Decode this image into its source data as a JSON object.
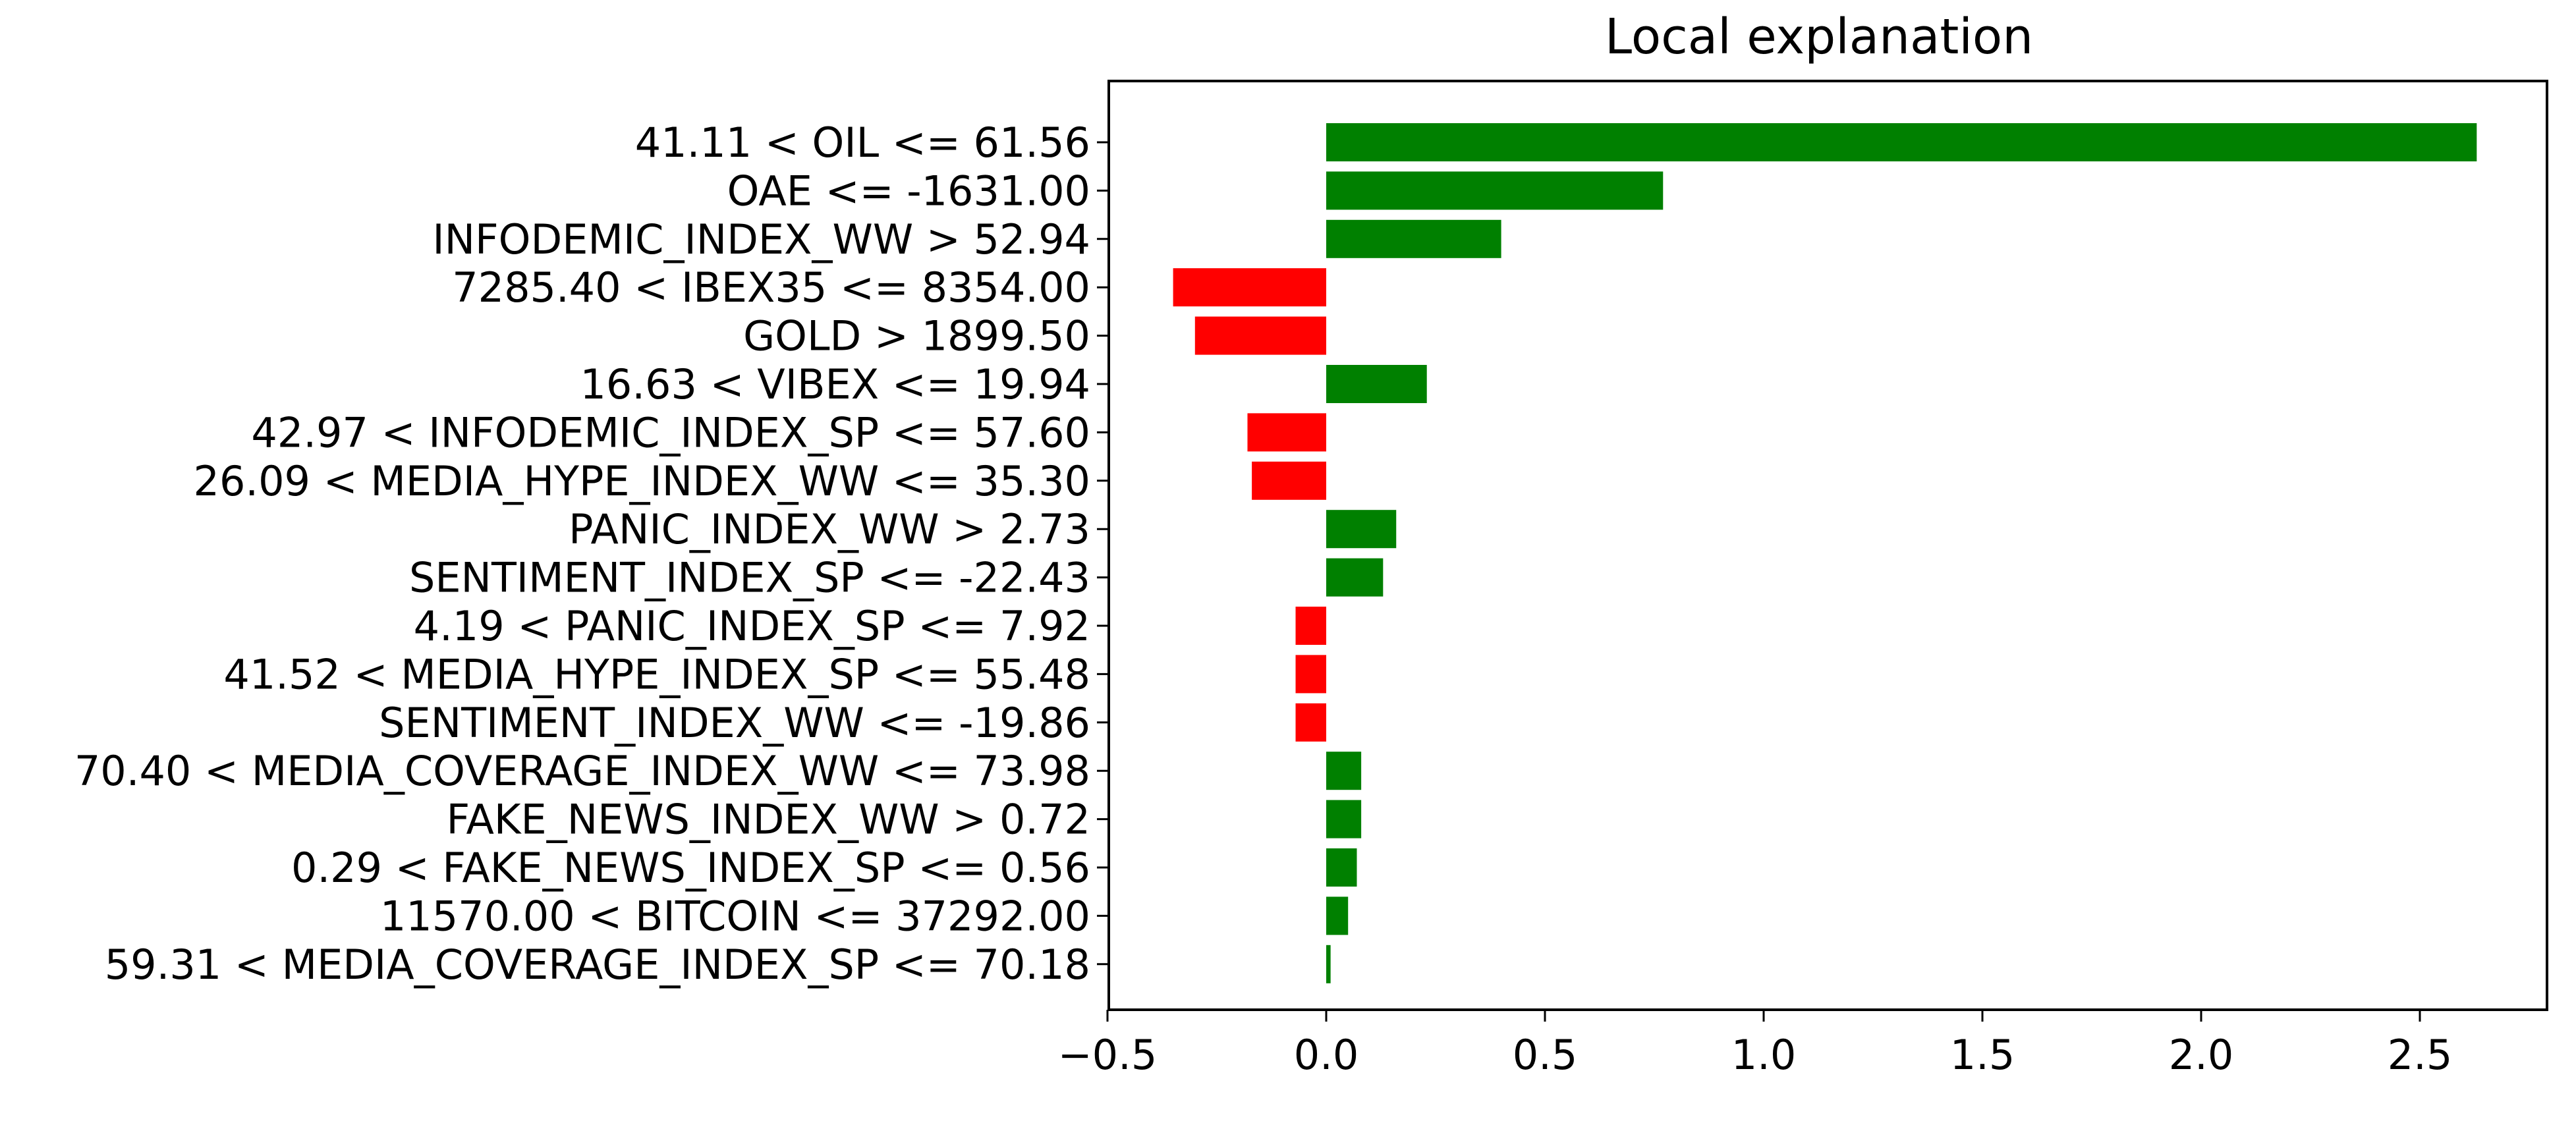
{
  "chart_data": {
    "type": "bar",
    "orientation": "horizontal",
    "title": "Local explanation",
    "xlabel": "",
    "ylabel": "",
    "xlim": [
      -0.5,
      2.8
    ],
    "xticks": [
      -0.5,
      0.0,
      0.5,
      1.0,
      1.5,
      2.0,
      2.5
    ],
    "xtick_labels": [
      "−0.5",
      "0.0",
      "0.5",
      "1.0",
      "1.5",
      "2.0",
      "2.5"
    ],
    "grid": false,
    "colors": {
      "positive": "#008000",
      "negative": "#ff0000"
    },
    "categories": [
      "41.11 < OIL <= 61.56",
      "OAE <= -1631.00",
      "INFODEMIC_INDEX_WW > 52.94",
      "7285.40 < IBEX35 <= 8354.00",
      "GOLD > 1899.50",
      "16.63 < VIBEX <= 19.94",
      "42.97 < INFODEMIC_INDEX_SP <= 57.60",
      "26.09 < MEDIA_HYPE_INDEX_WW <= 35.30",
      "PANIC_INDEX_WW > 2.73",
      "SENTIMENT_INDEX_SP <= -22.43",
      "4.19 < PANIC_INDEX_SP <= 7.92",
      "41.52 < MEDIA_HYPE_INDEX_SP <= 55.48",
      "SENTIMENT_INDEX_WW <= -19.86",
      "70.40 < MEDIA_COVERAGE_INDEX_WW <= 73.98",
      "FAKE_NEWS_INDEX_WW > 0.72",
      "0.29 < FAKE_NEWS_INDEX_SP <= 0.56",
      "11570.00 < BITCOIN <= 37292.00",
      "59.31 < MEDIA_COVERAGE_INDEX_SP <= 70.18"
    ],
    "values": [
      2.63,
      0.77,
      0.4,
      -0.35,
      -0.3,
      0.23,
      -0.18,
      -0.17,
      0.16,
      0.13,
      -0.07,
      -0.07,
      -0.07,
      0.08,
      0.08,
      0.07,
      0.05,
      0.01
    ]
  }
}
